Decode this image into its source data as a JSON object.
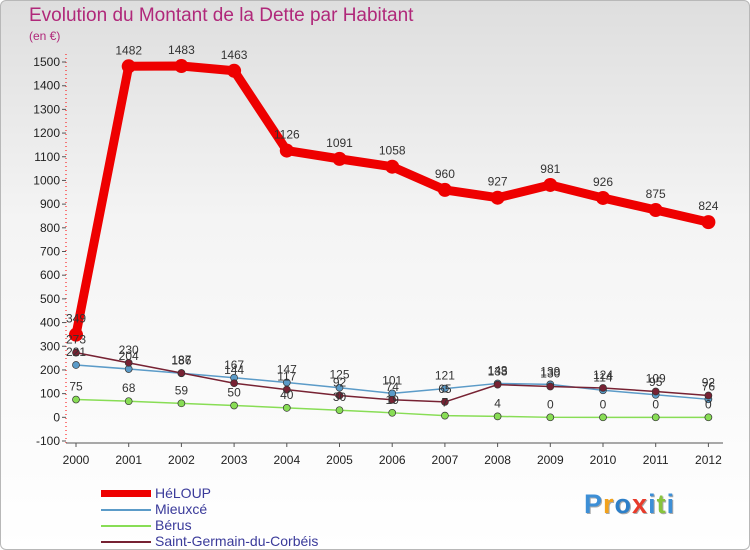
{
  "header": {
    "title": "Evolution du Montant de la Dette par Habitant",
    "unit": "(en €)"
  },
  "chart_data": {
    "type": "line",
    "title": "Evolution du Montant de la Dette par Habitant",
    "subtitle": "(en €)",
    "xlabel": "",
    "ylabel": "",
    "x": [
      "2000",
      "2001",
      "2002",
      "2003",
      "2004",
      "2005",
      "2006",
      "2007",
      "2008",
      "2009",
      "2010",
      "2011",
      "2012"
    ],
    "ylim": [
      -100,
      1500
    ],
    "yticks": [
      -100,
      0,
      100,
      200,
      300,
      400,
      500,
      600,
      700,
      800,
      900,
      1000,
      1100,
      1200,
      1300,
      1400,
      1500
    ],
    "grid": false,
    "legend_position": "bottom-left",
    "series": [
      {
        "name": "HéLOUP",
        "color": "#ee0000",
        "values": [
          349,
          1482,
          1483,
          1463,
          1126,
          1091,
          1058,
          960,
          927,
          981,
          926,
          875,
          824
        ]
      },
      {
        "name": "Mieuxcé",
        "color": "#5b9bc8",
        "values": [
          221,
          204,
          186,
          167,
          147,
          125,
          101,
          121,
          143,
          139,
          114,
          95,
          76
        ]
      },
      {
        "name": "Bérus",
        "color": "#88dd55",
        "values": [
          75,
          68,
          59,
          50,
          40,
          30,
          19,
          7,
          4,
          0,
          0,
          0,
          0
        ]
      },
      {
        "name": "Saint-Germain-du-Corbéis",
        "color": "#772233",
        "values": [
          273,
          230,
          187,
          144,
          117,
          92,
          74,
          65,
          138,
          130,
          124,
          109,
          92
        ]
      }
    ]
  },
  "legend": {
    "items": [
      "HéLOUP",
      "Mieuxcé",
      "Bérus",
      "Saint-Germain-du-Corbéis"
    ]
  },
  "brand": {
    "letters": [
      "P",
      "r",
      "o",
      "x",
      "i",
      "t",
      "i"
    ],
    "colors": [
      "#3d8fd6",
      "#f2a21c",
      "#2d7fc8",
      "#e83a2a",
      "#3d8fd6",
      "#88c43c",
      "#3d8fd6"
    ]
  }
}
